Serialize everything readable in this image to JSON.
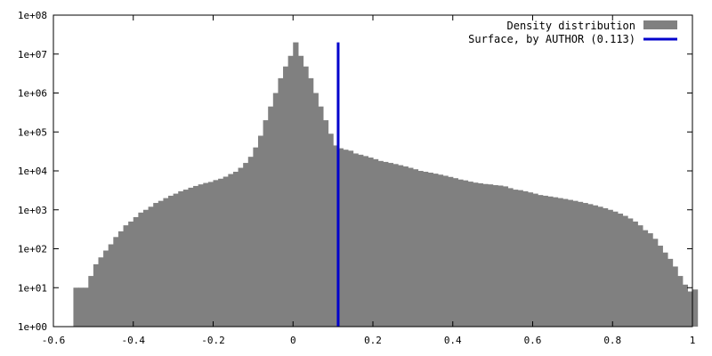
{
  "chart_data": {
    "type": "bar",
    "title": "",
    "xlabel": "",
    "ylabel": "",
    "x_range": [
      -0.6,
      1.0
    ],
    "y_range": [
      1,
      100000000
    ],
    "y_scale": "log",
    "grid": false,
    "legend_position": "top-right",
    "x_ticks": [
      "-0.6",
      "-0.4",
      "-0.2",
      "0",
      "0.2",
      "0.4",
      "0.6",
      "0.8",
      "1"
    ],
    "x_tick_values": [
      -0.6,
      -0.4,
      -0.2,
      0,
      0.2,
      0.4,
      0.6,
      0.8,
      1.0
    ],
    "y_ticks": [
      "1e+00",
      "1e+01",
      "1e+02",
      "1e+03",
      "1e+04",
      "1e+05",
      "1e+06",
      "1e+07",
      "1e+08"
    ],
    "y_tick_values": [
      1,
      10,
      100,
      1000,
      10000,
      100000,
      1000000,
      10000000,
      100000000
    ],
    "series": [
      {
        "name": "Density distribution",
        "kind": "histogram",
        "color": "#808080",
        "bin_width": 0.0125,
        "x_start": -0.55,
        "values": [
          10,
          10,
          10,
          20,
          40,
          60,
          90,
          130,
          200,
          280,
          400,
          500,
          650,
          850,
          1000,
          1200,
          1500,
          1700,
          2000,
          2300,
          2600,
          3000,
          3300,
          3700,
          4100,
          4500,
          4900,
          5200,
          5800,
          6300,
          7100,
          8300,
          9500,
          12000,
          16000,
          23000,
          40000,
          80000,
          200000,
          450000,
          1000000,
          2400000,
          4800000,
          9000000,
          20000000,
          9000000,
          4800000,
          2400000,
          1000000,
          450000,
          200000,
          90000,
          45000,
          38000,
          35000,
          33000,
          28000,
          26000,
          24000,
          22000,
          20000,
          18000,
          17000,
          16000,
          15000,
          14000,
          13000,
          12000,
          11000,
          10000,
          9500,
          9000,
          8500,
          8000,
          7500,
          7000,
          6500,
          6000,
          5700,
          5300,
          5000,
          4800,
          4600,
          4500,
          4300,
          4200,
          4000,
          3600,
          3300,
          3200,
          3000,
          2800,
          2600,
          2400,
          2300,
          2200,
          2100,
          2000,
          1900,
          1800,
          1700,
          1600,
          1500,
          1400,
          1300,
          1200,
          1100,
          1000,
          900,
          800,
          700,
          600,
          500,
          400,
          300,
          250,
          180,
          120,
          80,
          55,
          35,
          20,
          12,
          8,
          9
        ]
      },
      {
        "name": "Surface, by AUTHOR (0.113)",
        "kind": "vline",
        "color": "#0000cc",
        "x": 0.113,
        "y_top": 20000000
      }
    ]
  }
}
